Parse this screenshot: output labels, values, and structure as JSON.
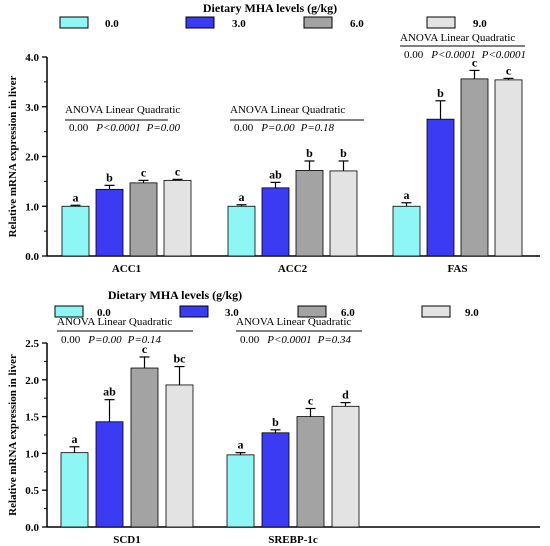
{
  "colors": {
    "0.0": "#8ff6f6",
    "3.0": "#3a3bf2",
    "6.0": "#a3a3a3",
    "9.0": "#e3e3e3",
    "axis": "#000000"
  },
  "legend_title": "Dietary MHA levels (g/kg)",
  "anova_headers": [
    "ANOVA",
    "Linear",
    "Quadratic"
  ],
  "chart_data": [
    {
      "type": "bar",
      "ylabel": "Relative mRNA expression in liver",
      "ylim": [
        0,
        4
      ],
      "yticks": [
        "0.0",
        "1.0",
        "2.0",
        "3.0",
        "4.0"
      ],
      "categories": [
        "ACC1",
        "ACC2",
        "FAS"
      ],
      "legend": [
        "0.0",
        "3.0",
        "6.0",
        "9.0"
      ],
      "series": [
        {
          "name": "0.0",
          "values": [
            1.0,
            1.0,
            1.0
          ],
          "errors": [
            0.02,
            0.03,
            0.07
          ],
          "letters": [
            "a",
            "a",
            "a"
          ]
        },
        {
          "name": "3.0",
          "values": [
            1.34,
            1.37,
            2.75
          ],
          "errors": [
            0.08,
            0.11,
            0.37
          ],
          "letters": [
            "b",
            "ab",
            "b"
          ]
        },
        {
          "name": "6.0",
          "values": [
            1.47,
            1.72,
            3.56
          ],
          "errors": [
            0.05,
            0.19,
            0.17
          ],
          "letters": [
            "c",
            "b",
            "c"
          ]
        },
        {
          "name": "9.0",
          "values": [
            1.52,
            1.71,
            3.54
          ],
          "errors": [
            0.02,
            0.2,
            0.03
          ],
          "letters": [
            "c",
            "b",
            "c"
          ]
        }
      ],
      "anova": [
        {
          "anova": "0.00",
          "linear": "P<0.0001",
          "quadratic": "P=0.00"
        },
        {
          "anova": "0.00",
          "linear": "P=0.00",
          "quadratic": "P=0.18"
        },
        {
          "anova": "0.00",
          "linear": "P<0.0001",
          "quadratic": "P<0.0001"
        }
      ]
    },
    {
      "type": "bar",
      "ylabel": "Relative mRNA expression in liver",
      "ylim": [
        0,
        2.5
      ],
      "yticks": [
        "0.0",
        "0.5",
        "1.0",
        "1.5",
        "2.0",
        "2.5"
      ],
      "categories": [
        "SCD1",
        "SREBP-1c"
      ],
      "legend": [
        "0.0",
        "3.0",
        "6.0",
        "9.0"
      ],
      "series": [
        {
          "name": "0.0",
          "values": [
            1.01,
            0.98
          ],
          "errors": [
            0.08,
            0.03
          ],
          "letters": [
            "a",
            "a"
          ]
        },
        {
          "name": "3.0",
          "values": [
            1.43,
            1.28
          ],
          "errors": [
            0.3,
            0.04
          ],
          "letters": [
            "ab",
            "b"
          ]
        },
        {
          "name": "6.0",
          "values": [
            2.16,
            1.5
          ],
          "errors": [
            0.15,
            0.11
          ],
          "letters": [
            "c",
            "c"
          ]
        },
        {
          "name": "9.0",
          "values": [
            1.93,
            1.64
          ],
          "errors": [
            0.25,
            0.05
          ],
          "letters": [
            "bc",
            "d"
          ]
        }
      ],
      "anova": [
        {
          "anova": "0.00",
          "linear": "P=0.00",
          "quadratic": "P=0.14"
        },
        {
          "anova": "0.00",
          "linear": "P<0.0001",
          "quadratic": "P=0.34"
        }
      ]
    }
  ]
}
